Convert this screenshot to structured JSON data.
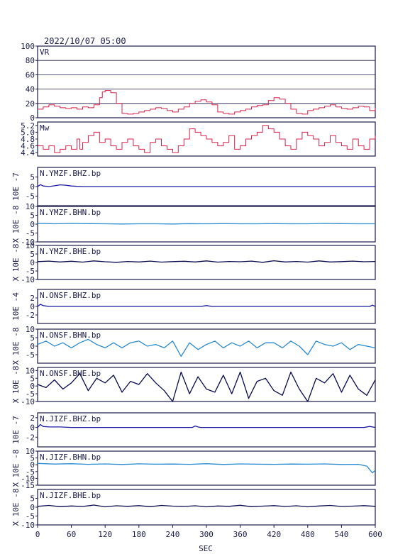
{
  "header": {
    "datetime": "2022/10/07 05:00"
  },
  "colors": {
    "frame": "#1a1a4a",
    "vr": "#d4204a",
    "mw": "#d4204a",
    "bhz": "#1a1aa0",
    "bhn": "#2a8ad0",
    "bhe": "#0a0a50",
    "grid": "#1a1a4a"
  },
  "chart_data": {
    "type": "line",
    "xlabel": "SEC",
    "xlim": [
      0,
      600
    ],
    "xticks": [
      0,
      60,
      120,
      180,
      240,
      300,
      360,
      420,
      480,
      540,
      600
    ],
    "panels": [
      {
        "label": "VR",
        "ylabel": "",
        "ylim": [
          0,
          100
        ],
        "yticks": [
          0,
          20,
          40,
          60,
          80,
          100
        ],
        "grid": true,
        "color": "vr",
        "kind": "step",
        "series": [
          {
            "x": [
              0,
              10,
              20,
              30,
              40,
              50,
              60,
              70,
              80,
              90,
              100,
              110,
              115,
              120,
              125,
              130,
              140,
              150,
              160,
              170,
              180,
              190,
              200,
              210,
              220,
              230,
              240,
              250,
              260,
              270,
              280,
              290,
              300,
              310,
              320,
              330,
              340,
              350,
              360,
              370,
              380,
              390,
              400,
              410,
              420,
              430,
              440,
              450,
              460,
              470,
              480,
              490,
              500,
              510,
              520,
              530,
              540,
              550,
              560,
              570,
              580,
              590,
              600
            ],
            "y": [
              12,
              15,
              18,
              16,
              14,
              13,
              14,
              12,
              15,
              14,
              18,
              28,
              36,
              38,
              38,
              35,
              20,
              6,
              5,
              6,
              8,
              10,
              12,
              14,
              13,
              10,
              8,
              12,
              15,
              20,
              23,
              25,
              22,
              18,
              8,
              6,
              5,
              8,
              10,
              12,
              15,
              17,
              18,
              24,
              28,
              26,
              20,
              12,
              6,
              5,
              10,
              12,
              14,
              16,
              18,
              15,
              13,
              12,
              14,
              16,
              15,
              10,
              14
            ]
          }
        ]
      },
      {
        "label": "Mw",
        "ylabel": "",
        "ylim": [
          4.3,
          5.3
        ],
        "yticks": [
          4.4,
          4.6,
          4.8,
          5.0,
          5.2
        ],
        "grid": false,
        "color": "mw",
        "kind": "step",
        "series": [
          {
            "x": [
              0,
              10,
              20,
              30,
              40,
              50,
              60,
              70,
              75,
              80,
              90,
              100,
              110,
              120,
              130,
              140,
              150,
              160,
              170,
              180,
              190,
              200,
              210,
              220,
              230,
              240,
              250,
              260,
              270,
              280,
              290,
              300,
              310,
              320,
              330,
              340,
              350,
              360,
              370,
              380,
              390,
              400,
              410,
              420,
              430,
              440,
              450,
              460,
              470,
              480,
              490,
              500,
              510,
              520,
              530,
              540,
              550,
              560,
              570,
              580,
              590,
              600
            ],
            "y": [
              4.6,
              4.5,
              4.6,
              4.4,
              4.5,
              4.6,
              4.5,
              4.8,
              4.5,
              4.7,
              4.9,
              5.0,
              4.7,
              4.8,
              4.6,
              4.5,
              4.7,
              4.8,
              4.6,
              4.5,
              4.4,
              4.7,
              4.8,
              4.6,
              4.5,
              4.4,
              4.6,
              4.8,
              5.1,
              5.0,
              4.9,
              4.8,
              4.7,
              4.6,
              4.7,
              4.9,
              4.5,
              4.6,
              4.8,
              4.9,
              5.0,
              5.2,
              5.1,
              5.0,
              4.8,
              4.6,
              4.5,
              4.8,
              5.0,
              4.9,
              4.8,
              4.6,
              4.7,
              4.9,
              4.7,
              4.6,
              4.5,
              4.8,
              4.6,
              4.5,
              4.8,
              4.9
            ]
          }
        ]
      },
      {
        "label": "N.YMZF.BHZ.bp",
        "ylabel": "10E -7",
        "ylim": [
          -10,
          10
        ],
        "yticks": [
          -5,
          0,
          5
        ],
        "grid": false,
        "color": "bhz",
        "kind": "wave",
        "series": [
          {
            "x": [
              0,
              5,
              10,
              20,
              30,
              40,
              50,
              60,
              70,
              80,
              90,
              100,
              120,
              180,
              240,
              300,
              360,
              420,
              480,
              540,
              600
            ],
            "y": [
              0,
              1.0,
              0.3,
              0,
              0.4,
              0.9,
              0.7,
              0.3,
              0.1,
              0,
              0,
              0,
              0,
              0,
              0,
              0,
              0,
              0,
              0,
              0,
              0
            ]
          }
        ]
      },
      {
        "label": "N.YMZF.BHN.bp",
        "ylabel": "X 10E -8",
        "ylim": [
          -10,
          10
        ],
        "yticks": [
          -10,
          -5,
          0,
          5,
          10
        ],
        "grid": false,
        "color": "bhn",
        "kind": "wave",
        "series": [
          {
            "x": [
              0,
              30,
              60,
              90,
              120,
              150,
              180,
              210,
              240,
              270,
              300,
              330,
              360,
              390,
              420,
              450,
              480,
              510,
              540,
              570,
              600
            ],
            "y": [
              0.5,
              0.2,
              0.4,
              0.3,
              0.2,
              0.1,
              0.2,
              0.2,
              0.1,
              0.3,
              0.2,
              0.3,
              0.2,
              0.2,
              0.3,
              0.2,
              0.2,
              0.4,
              0.3,
              0.2,
              0.2
            ]
          }
        ]
      },
      {
        "label": "N.YMZF.BHE.bp",
        "ylabel": "X 10E -8",
        "ylim": [
          -10,
          10
        ],
        "yticks": [
          -10,
          -5,
          0,
          5,
          10
        ],
        "grid": false,
        "color": "bhe",
        "kind": "wave",
        "series": [
          {
            "x": [
              0,
              20,
              40,
              60,
              80,
              100,
              120,
              140,
              160,
              180,
              200,
              220,
              240,
              260,
              280,
              300,
              320,
              340,
              360,
              380,
              400,
              420,
              440,
              460,
              480,
              500,
              520,
              540,
              560,
              580,
              600
            ],
            "y": [
              0.5,
              0.8,
              0.3,
              0.7,
              0.2,
              0.9,
              0.4,
              0.1,
              0.6,
              0.3,
              0.8,
              0.2,
              0.5,
              0.7,
              0.3,
              0.9,
              0.2,
              0.6,
              0.4,
              0.8,
              0.1,
              1.0,
              0.3,
              0.6,
              0.2,
              0.9,
              0.3,
              0.5,
              0.8,
              0.4,
              0.6
            ]
          }
        ]
      },
      {
        "label": "N.ONSF.BHZ.bp",
        "ylabel": "10E -4",
        "ylim": [
          -4,
          4
        ],
        "yticks": [
          -2,
          0,
          2
        ],
        "grid": false,
        "color": "bhz",
        "kind": "wave",
        "series": [
          {
            "x": [
              0,
              5,
              10,
              20,
              30,
              60,
              90,
              120,
              180,
              240,
              290,
              300,
              310,
              360,
              420,
              480,
              540,
              590,
              595,
              600
            ],
            "y": [
              0,
              0.5,
              0.2,
              0,
              0,
              0,
              0,
              0,
              0,
              0,
              0,
              0.2,
              0,
              0,
              0,
              0,
              0,
              0,
              0.3,
              0
            ]
          }
        ]
      },
      {
        "label": "N.ONSF.BHN.bp",
        "ylabel": "X 10E -8",
        "ylim": [
          -10,
          10
        ],
        "yticks": [
          -5,
          0,
          5,
          10
        ],
        "grid": false,
        "color": "bhn",
        "kind": "wave",
        "series": [
          {
            "x": [
              0,
              15,
              30,
              45,
              60,
              75,
              90,
              105,
              120,
              135,
              150,
              165,
              180,
              195,
              210,
              225,
              240,
              255,
              270,
              285,
              300,
              315,
              330,
              345,
              360,
              375,
              390,
              405,
              420,
              435,
              450,
              465,
              480,
              495,
              510,
              525,
              540,
              555,
              570,
              585,
              600
            ],
            "y": [
              1,
              3,
              0,
              2,
              -1,
              2,
              4,
              1,
              -1,
              2,
              -1,
              2,
              3,
              0,
              1,
              -1,
              3,
              -6,
              2,
              -2,
              1,
              3,
              -1,
              2,
              0,
              3,
              -1,
              2,
              2,
              -1,
              3,
              0,
              -5,
              3,
              1,
              0,
              2,
              -2,
              1,
              0,
              -1
            ]
          }
        ]
      },
      {
        "label": "N.ONSF.BHE.bp",
        "ylabel": "X 10E -8",
        "ylim": [
          -10,
          12
        ],
        "yticks": [
          -10,
          -5,
          0,
          5,
          10
        ],
        "grid": false,
        "color": "bhe",
        "kind": "wave",
        "series": [
          {
            "x": [
              0,
              15,
              30,
              45,
              60,
              75,
              90,
              105,
              120,
              135,
              150,
              165,
              180,
              195,
              210,
              225,
              240,
              255,
              270,
              285,
              300,
              315,
              330,
              345,
              360,
              375,
              390,
              405,
              420,
              435,
              450,
              465,
              480,
              495,
              510,
              525,
              540,
              555,
              570,
              585,
              600
            ],
            "y": [
              1,
              -1,
              4,
              -2,
              2,
              8,
              -3,
              5,
              2,
              7,
              -4,
              3,
              1,
              8,
              2,
              -3,
              -10,
              9,
              -5,
              6,
              -2,
              -4,
              7,
              -5,
              9,
              -8,
              3,
              5,
              -3,
              -6,
              9,
              -2,
              -10,
              5,
              2,
              8,
              -4,
              7,
              -2,
              -6,
              4
            ]
          }
        ]
      },
      {
        "label": "N.JIZF.BHZ.bp",
        "ylabel": "10E -7",
        "ylim": [
          -4,
          3
        ],
        "yticks": [
          -2,
          0,
          2
        ],
        "grid": false,
        "color": "bhz",
        "kind": "wave",
        "series": [
          {
            "x": [
              0,
              5,
              10,
              20,
              40,
              60,
              90,
              120,
              180,
              240,
              275,
              280,
              285,
              290,
              300,
              360,
              420,
              480,
              540,
              580,
              590,
              600
            ],
            "y": [
              0,
              0.6,
              0.2,
              0.1,
              0.1,
              0,
              0,
              0,
              0,
              0,
              0,
              0.3,
              0.1,
              0,
              0,
              0,
              0,
              0,
              0,
              0,
              0.2,
              0
            ]
          }
        ]
      },
      {
        "label": "N.JIZF.BHN.bp",
        "ylabel": "X 10E -8",
        "ylim": [
          -15,
          10
        ],
        "yticks": [
          -15,
          -10,
          -5,
          0,
          5,
          10
        ],
        "grid": false,
        "color": "bhn",
        "kind": "wave",
        "series": [
          {
            "x": [
              0,
              30,
              60,
              90,
              120,
              150,
              180,
              210,
              240,
              270,
              300,
              330,
              360,
              390,
              420,
              450,
              480,
              510,
              540,
              570,
              585,
              595,
              600
            ],
            "y": [
              1,
              0.5,
              0.8,
              0.3,
              0.6,
              0.2,
              0.7,
              0.4,
              0.5,
              0.3,
              0.8,
              0.2,
              0.6,
              0.4,
              0.3,
              0.5,
              0.4,
              0.6,
              0.2,
              0.3,
              -1,
              -6,
              -4
            ]
          }
        ]
      },
      {
        "label": "N.JIZF.BHE.bp",
        "ylabel": "X 10E -8",
        "ylim": [
          -10,
          10
        ],
        "yticks": [
          -10,
          -5,
          0,
          5
        ],
        "grid": false,
        "color": "bhe",
        "kind": "wave",
        "series": [
          {
            "x": [
              0,
              20,
              40,
              60,
              80,
              100,
              120,
              140,
              160,
              180,
              200,
              220,
              240,
              260,
              280,
              300,
              320,
              340,
              360,
              380,
              400,
              420,
              440,
              460,
              480,
              500,
              520,
              540,
              560,
              580,
              600
            ],
            "y": [
              0.5,
              1.0,
              0.3,
              0.7,
              0.4,
              1.2,
              0.2,
              0.8,
              0.5,
              0.9,
              0.3,
              1.0,
              0.6,
              0.4,
              0.8,
              0.2,
              0.7,
              0.5,
              1.1,
              0.3,
              0.6,
              0.9,
              0.4,
              0.8,
              0.2,
              0.7,
              1.0,
              0.4,
              0.6,
              0.9,
              0.5
            ]
          }
        ]
      }
    ]
  }
}
